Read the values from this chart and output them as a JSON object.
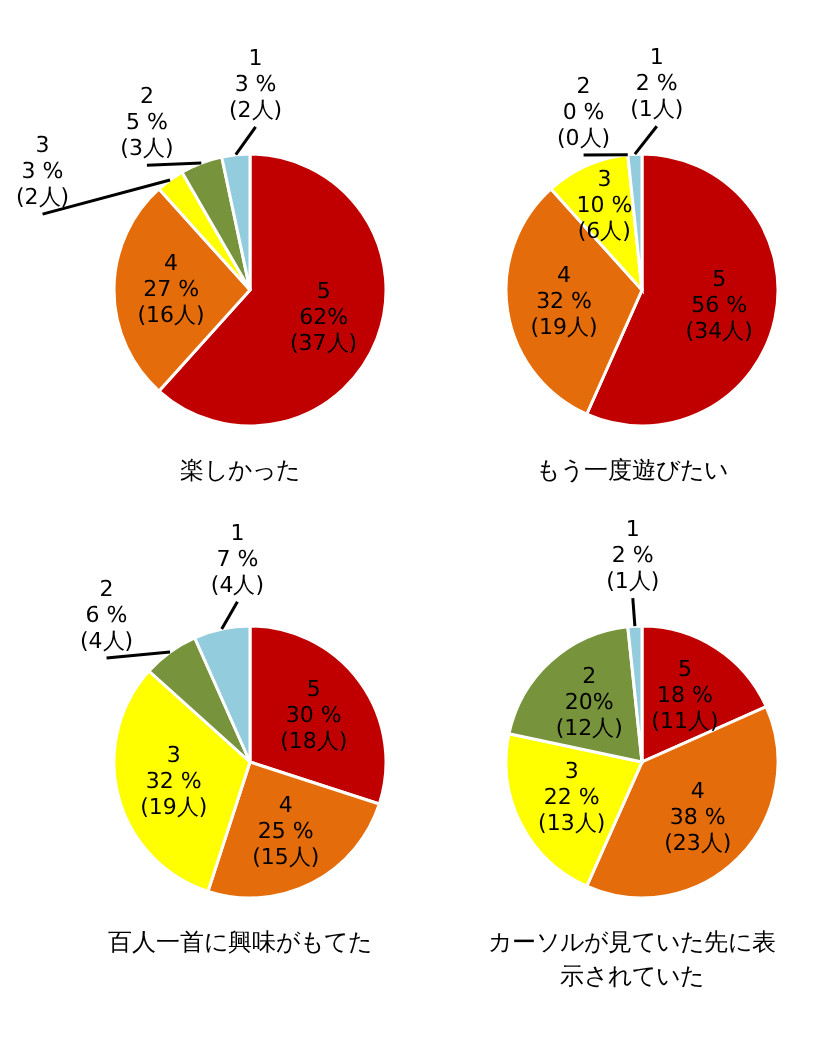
{
  "chart_data": [
    {
      "type": "pie",
      "title": "楽しかった",
      "categories": [
        "5",
        "4",
        "3",
        "2",
        "1"
      ],
      "values": [
        37,
        16,
        2,
        3,
        2
      ],
      "value_labels": [
        "62%\n(37人)",
        "27 %\n(16人)",
        "3 %\n(2人)",
        "5 %\n(3人)",
        "3 %\n(2人)"
      ],
      "colors": [
        "#c00000",
        "#e46c0a",
        "#ffff00",
        "#77933c",
        "#93cddd"
      ],
      "legend": false
    },
    {
      "type": "pie",
      "title": "もう一度遊びたい",
      "categories": [
        "5",
        "4",
        "3",
        "2",
        "1"
      ],
      "values": [
        34,
        19,
        6,
        0,
        1
      ],
      "value_labels": [
        "56 %\n(34人)",
        "32 %\n(19人)",
        "10 %\n(6人)",
        "0 %\n(0人)",
        "2 %\n(1人)"
      ],
      "colors": [
        "#c00000",
        "#e46c0a",
        "#ffff00",
        "#77933c",
        "#93cddd"
      ],
      "legend": false
    },
    {
      "type": "pie",
      "title": "百人一首に興味がもてた",
      "categories": [
        "5",
        "4",
        "3",
        "2",
        "1"
      ],
      "values": [
        18,
        15,
        19,
        4,
        4
      ],
      "value_labels": [
        "30 %\n(18人)",
        "25 %\n(15人)",
        "32 %\n(19人)",
        "6 %\n(4人)",
        "7 %\n(4人)"
      ],
      "colors": [
        "#c00000",
        "#e46c0a",
        "#ffff00",
        "#77933c",
        "#93cddd"
      ],
      "legend": false
    },
    {
      "type": "pie",
      "title": "カーソルが見ていた先に表示されていた",
      "categories": [
        "5",
        "4",
        "3",
        "2",
        "1"
      ],
      "values": [
        11,
        23,
        13,
        12,
        1
      ],
      "value_labels": [
        "18 %\n(11人)",
        "38 %\n(23人)",
        "22 %\n(13人)",
        "20%\n(12人)",
        "2 %\n(1人)"
      ],
      "colors": [
        "#c00000",
        "#e46c0a",
        "#ffff00",
        "#77933c",
        "#93cddd"
      ],
      "legend": false
    }
  ]
}
